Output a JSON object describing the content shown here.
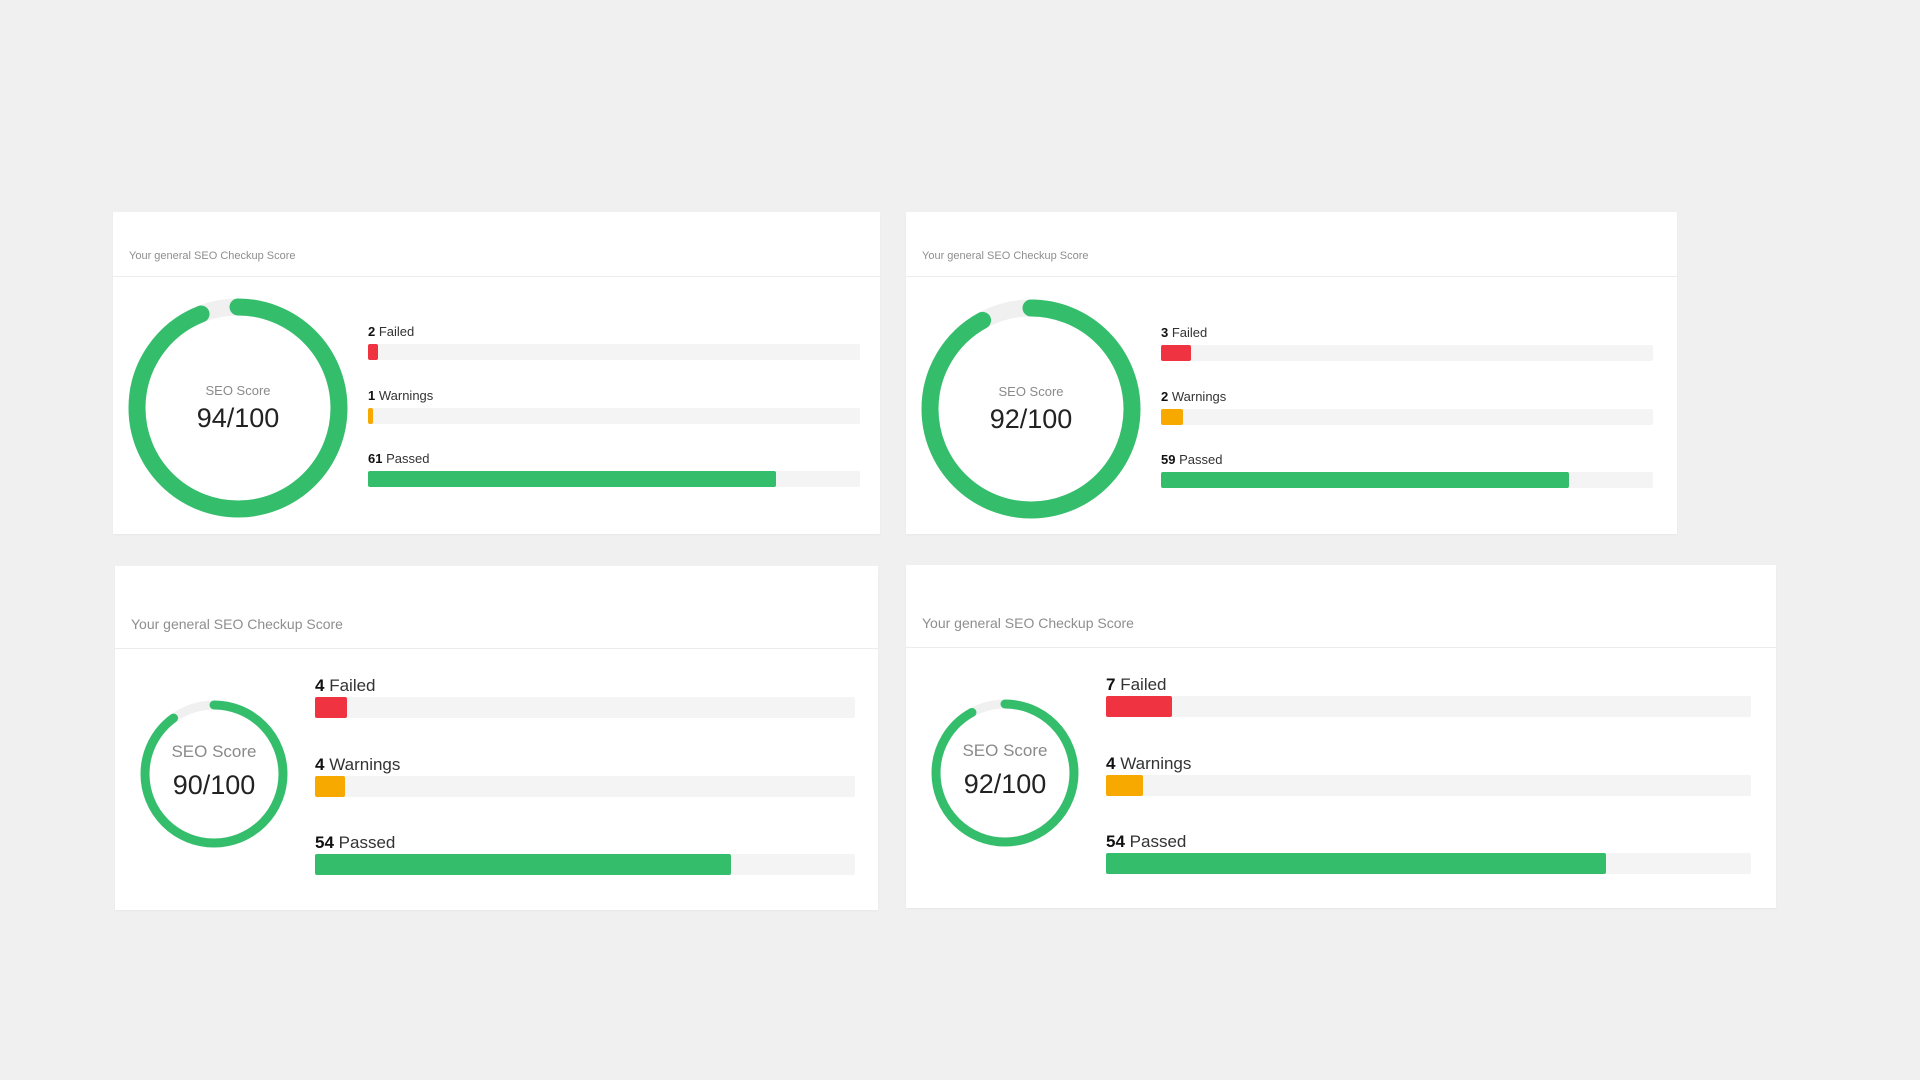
{
  "colors": {
    "failed": "#ef3340",
    "warnings": "#f8a900",
    "passed": "#34be6c",
    "gauge_track": "#f0f0f0"
  },
  "cards": [
    {
      "header": "Your general SEO Checkup Score",
      "gauge_label": "SEO Score",
      "score_text": "94/100",
      "score": 94,
      "failed": {
        "count": "2",
        "label": "Failed",
        "fill_fraction": 0.02
      },
      "warnings": {
        "count": "1",
        "label": "Warnings",
        "fill_fraction": 0.01
      },
      "passed": {
        "count": "61",
        "label": "Passed",
        "fill_fraction": 0.83
      }
    },
    {
      "header": "Your general SEO Checkup Score",
      "gauge_label": "SEO Score",
      "score_text": "92/100",
      "score": 92,
      "failed": {
        "count": "3",
        "label": "Failed",
        "fill_fraction": 0.06
      },
      "warnings": {
        "count": "2",
        "label": "Warnings",
        "fill_fraction": 0.045
      },
      "passed": {
        "count": "59",
        "label": "Passed",
        "fill_fraction": 0.83
      }
    },
    {
      "header": "Your general SEO Checkup Score",
      "gauge_label": "SEO Score",
      "score_text": "90/100",
      "score": 90,
      "failed": {
        "count": "4",
        "label": "Failed",
        "fill_fraction": 0.06
      },
      "warnings": {
        "count": "4",
        "label": "Warnings",
        "fill_fraction": 0.056
      },
      "passed": {
        "count": "54",
        "label": "Passed",
        "fill_fraction": 0.77
      }
    },
    {
      "header": "Your general SEO Checkup Score",
      "gauge_label": "SEO Score",
      "score_text": "92/100",
      "score": 92,
      "failed": {
        "count": "7",
        "label": "Failed",
        "fill_fraction": 0.103
      },
      "warnings": {
        "count": "4",
        "label": "Warnings",
        "fill_fraction": 0.057
      },
      "passed": {
        "count": "54",
        "label": "Passed",
        "fill_fraction": 0.775
      }
    }
  ]
}
